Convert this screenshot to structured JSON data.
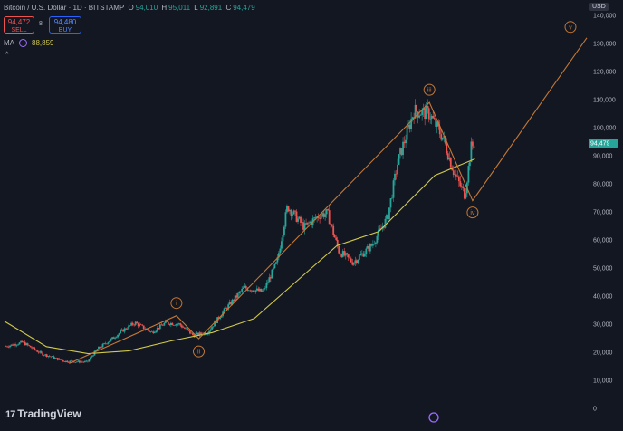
{
  "header": {
    "symbol": "Bitcoin / U.S. Dollar · 1D · BITSTAMP",
    "ohlc": [
      {
        "k": "O",
        "v": "94,010"
      },
      {
        "k": "H",
        "v": "95,011"
      },
      {
        "k": "L",
        "v": "92,891"
      },
      {
        "k": "C",
        "v": "94,479"
      }
    ],
    "sell_price": "94,472",
    "sell_label": "SELL",
    "spread": "8",
    "buy_price": "94,480",
    "buy_label": "BUY",
    "ma_label": "MA",
    "ma_value": "88,859",
    "collapse_glyph": "^"
  },
  "currency": "USD",
  "branding": "TradingView",
  "colors": {
    "background": "#131722",
    "up": "#26a69a",
    "down": "#ef5350",
    "moving_average": "#d1c94a",
    "elliott_wave": "#c47835",
    "price_badge": "#26a69a"
  },
  "chart_data": {
    "type": "candlestick",
    "title": "Bitcoin / U.S. Dollar · 1D · BITSTAMP",
    "y_axis": {
      "ticks": [
        "0",
        "10,000",
        "20,000",
        "30,000",
        "40,000",
        "50,000",
        "60,000",
        "70,000",
        "80,000",
        "90,000",
        "100,000",
        "110,000",
        "120,000",
        "130,000",
        "140,000"
      ],
      "ylim": [
        0,
        140000
      ],
      "position": "right"
    },
    "x_axis": {
      "range": [
        "2022-07-01",
        "2026-01-01"
      ],
      "tick_labels_visible": false
    },
    "last_price": "94,479",
    "price_path": [
      [
        "2022-07-01",
        22000
      ],
      [
        "2022-08-10",
        23500
      ],
      [
        "2022-09-20",
        19500
      ],
      [
        "2022-11-10",
        16800
      ],
      [
        "2022-12-30",
        16500
      ],
      [
        "2023-01-20",
        21000
      ],
      [
        "2023-02-20",
        24500
      ],
      [
        "2023-03-20",
        28000
      ],
      [
        "2023-04-14",
        30500
      ],
      [
        "2023-05-20",
        27000
      ],
      [
        "2023-06-20",
        30500
      ],
      [
        "2023-07-20",
        30000
      ],
      [
        "2023-08-20",
        26000
      ],
      [
        "2023-09-20",
        27000
      ],
      [
        "2023-10-25",
        34500
      ],
      [
        "2023-12-10",
        43000
      ],
      [
        "2024-01-20",
        41500
      ],
      [
        "2024-02-20",
        52000
      ],
      [
        "2024-03-14",
        72000
      ],
      [
        "2024-04-20",
        64500
      ],
      [
        "2024-05-25",
        69000
      ],
      [
        "2024-06-10",
        69500
      ],
      [
        "2024-07-05",
        56000
      ],
      [
        "2024-08-05",
        52000
      ],
      [
        "2024-09-15",
        58000
      ],
      [
        "2024-10-20",
        68000
      ],
      [
        "2024-11-12",
        88000
      ],
      [
        "2024-12-17",
        106000
      ],
      [
        "2025-01-20",
        105000
      ],
      [
        "2025-02-20",
        96000
      ],
      [
        "2025-03-15",
        84000
      ],
      [
        "2025-04-08",
        76000
      ],
      [
        "2025-04-22",
        93000
      ],
      [
        "2025-04-30",
        94479
      ]
    ],
    "moving_average": {
      "label": "MA",
      "value": "88,859",
      "path": [
        [
          "2022-07-01",
          31000
        ],
        [
          "2022-10-01",
          22000
        ],
        [
          "2023-01-01",
          19500
        ],
        [
          "2023-04-01",
          20500
        ],
        [
          "2023-07-01",
          24000
        ],
        [
          "2023-10-01",
          27000
        ],
        [
          "2024-01-01",
          32000
        ],
        [
          "2024-04-01",
          45000
        ],
        [
          "2024-07-01",
          58000
        ],
        [
          "2024-10-01",
          63000
        ],
        [
          "2024-12-01",
          73000
        ],
        [
          "2025-02-01",
          83000
        ],
        [
          "2025-04-30",
          88859
        ]
      ]
    },
    "elliott_wave": {
      "path": [
        [
          "2022-11-20",
          16000
        ],
        [
          "2023-07-14",
          33000
        ],
        [
          "2023-09-01",
          24800
        ],
        [
          "2025-01-20",
          109000
        ],
        [
          "2025-04-25",
          74000
        ],
        [
          "2026-01-01",
          132000
        ]
      ],
      "labels": [
        {
          "text": "i",
          "date": "2023-07-14",
          "price": 33000
        },
        {
          "text": "ii",
          "date": "2023-09-01",
          "price": 24800
        },
        {
          "text": "iii",
          "date": "2025-01-20",
          "price": 109000
        },
        {
          "text": "iv",
          "date": "2025-04-25",
          "price": 74000
        },
        {
          "text": "v",
          "date": "2026-01-01",
          "price": 132000
        }
      ]
    },
    "grid": false
  }
}
